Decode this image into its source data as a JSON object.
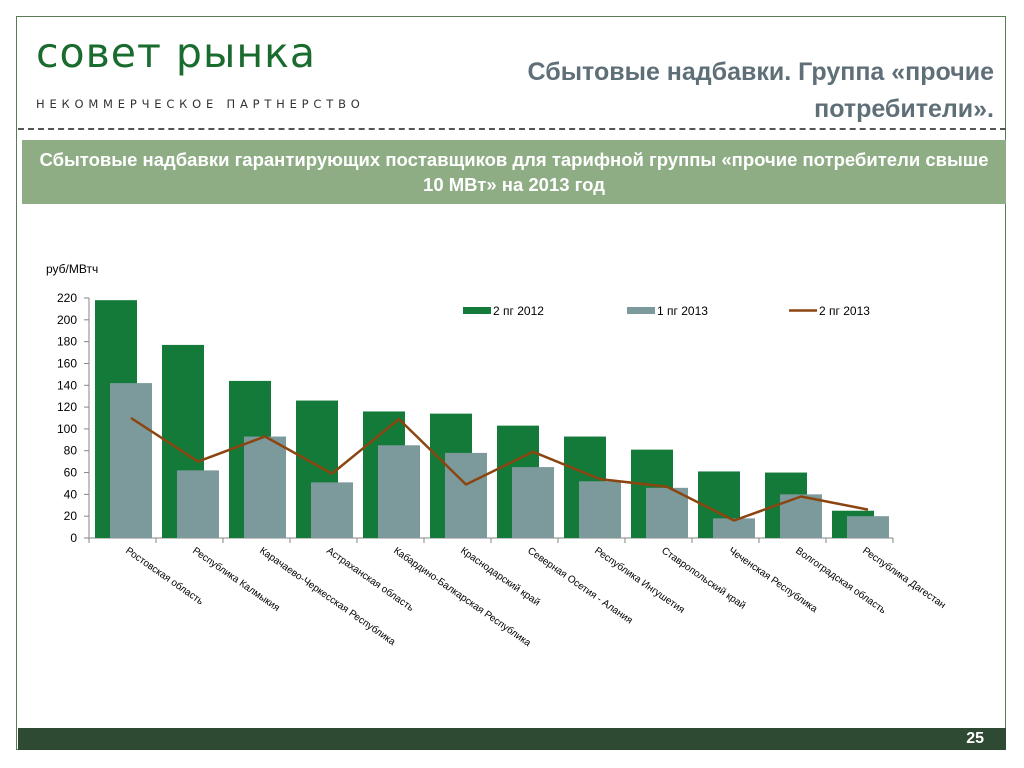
{
  "header": {
    "logo_main": "совет рынка",
    "logo_sub": "НЕКОММЕРЧЕСКОЕ ПАРТНЕРСТВО",
    "title": "Сбытовые надбавки. Группа «прочие потребители»."
  },
  "banner": {
    "text": "Сбытовые надбавки гарантирующих поставщиков для тарифной группы «прочие потребители свыше 10 МВт» на 2013 год"
  },
  "footer": {
    "page_number": "25"
  },
  "colors": {
    "series_2012": "#137a39",
    "series_1pg_2013": "#7c9a9b",
    "series_2pg_2013": "#8b4511",
    "banner": "#8fad85",
    "footer": "#2f4a32",
    "logo": "#1a6b2e"
  },
  "chart_data": {
    "type": "bar",
    "ylabel": "руб/МВтч",
    "ylim": [
      0,
      220
    ],
    "yticks": [
      0,
      20,
      40,
      60,
      80,
      100,
      120,
      140,
      160,
      180,
      200,
      220
    ],
    "grid": false,
    "legend_position": "top-right",
    "categories": [
      "Ростовская область",
      "Республика Калмыкия",
      "Карачаево-Черкесская Республика",
      "Астраханская область",
      "Кабардино-Балкарская Республика",
      "Краснодарский край",
      "Северная Осетия - Алания",
      "Республика Ингушетия",
      "Ставропольский край",
      "Чеченская Республика",
      "Волгоградская область",
      "Республика Дагестан"
    ],
    "series": [
      {
        "name": "2 пг 2012",
        "type": "bar",
        "values": [
          218,
          177,
          144,
          126,
          116,
          114,
          103,
          93,
          81,
          61,
          60,
          25
        ]
      },
      {
        "name": "1 пг 2013",
        "type": "bar",
        "values": [
          142,
          62,
          93,
          51,
          85,
          78,
          65,
          52,
          46,
          18,
          40,
          20
        ]
      },
      {
        "name": "2 пг 2013",
        "type": "line",
        "values": [
          110,
          70,
          93,
          59,
          109,
          49,
          79,
          54,
          47,
          16,
          38,
          26
        ]
      }
    ]
  }
}
